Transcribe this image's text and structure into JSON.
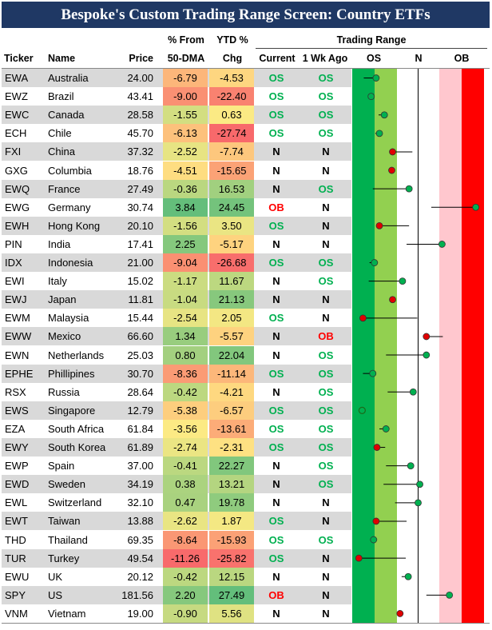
{
  "title": "Bespoke's Custom Trading Range Screen: Country ETFs",
  "headers": {
    "ticker": "Ticker",
    "name": "Name",
    "price": "Price",
    "pct_from_line1": "% From",
    "pct_from_line2": "50-DMA",
    "ytd_line1": "YTD %",
    "ytd_line2": "Chg",
    "trading_range": "Trading Range",
    "current": "Current",
    "wk_ago": "1 Wk Ago",
    "os": "OS",
    "n": "N",
    "ob": "OB"
  },
  "colors": {
    "title_bg": "#1f3864",
    "os_green": "#00b050",
    "ob_red": "#ff0000",
    "dark_green_zone": "#00b050",
    "light_green_zone": "#92d050",
    "light_red_zone": "#ffc7ce",
    "red_zone": "#ff0000",
    "dot_green": "#00b050",
    "dot_red": "#e00000"
  },
  "chart_data": {
    "type": "table",
    "range_scale": "OS to OB",
    "rows": [
      {
        "ticker": "EWA",
        "name": "Australia",
        "price": "24.00",
        "dma": "-6.79",
        "ytd": "-4.53",
        "current": "OS",
        "wk_ago": "OS",
        "pos": -2.55,
        "prev": -3.3,
        "dot": "green"
      },
      {
        "ticker": "EWZ",
        "name": "Brazil",
        "price": "43.41",
        "dma": "-9.00",
        "ytd": "-22.40",
        "current": "OS",
        "wk_ago": "OS",
        "pos": -2.85,
        "prev": -2.85,
        "dot": "green"
      },
      {
        "ticker": "EWC",
        "name": "Canada",
        "price": "28.58",
        "dma": "-1.55",
        "ytd": "0.63",
        "current": "OS",
        "wk_ago": "OS",
        "pos": -2.05,
        "prev": -2.4,
        "dot": "green"
      },
      {
        "ticker": "ECH",
        "name": "Chile",
        "price": "45.70",
        "dma": "-6.13",
        "ytd": "-27.74",
        "current": "OS",
        "wk_ago": "OS",
        "pos": -2.35,
        "prev": -2.6,
        "dot": "green"
      },
      {
        "ticker": "FXI",
        "name": "China",
        "price": "37.32",
        "dma": "-2.52",
        "ytd": "-7.74",
        "current": "N",
        "wk_ago": "N",
        "pos": -1.55,
        "prev": -0.35,
        "dot": "red"
      },
      {
        "ticker": "GXG",
        "name": "Columbia",
        "price": "18.76",
        "dma": "-4.51",
        "ytd": "-15.65",
        "current": "N",
        "wk_ago": "N",
        "pos": -1.6,
        "prev": -1.6,
        "dot": "red"
      },
      {
        "ticker": "EWQ",
        "name": "France",
        "price": "27.49",
        "dma": "-0.36",
        "ytd": "16.53",
        "current": "N",
        "wk_ago": "OS",
        "pos": -0.55,
        "prev": -2.75,
        "dot": "green"
      },
      {
        "ticker": "EWG",
        "name": "Germany",
        "price": "30.74",
        "dma": "3.84",
        "ytd": "24.45",
        "current": "OB",
        "wk_ago": "N",
        "pos": 3.5,
        "prev": 0.8,
        "dot": "green"
      },
      {
        "ticker": "EWH",
        "name": "Hong Kong",
        "price": "20.10",
        "dma": "-1.56",
        "ytd": "3.50",
        "current": "OS",
        "wk_ago": "N",
        "pos": -2.35,
        "prev": -0.55,
        "dot": "red"
      },
      {
        "ticker": "PIN",
        "name": "India",
        "price": "17.41",
        "dma": "2.25",
        "ytd": "-5.17",
        "current": "N",
        "wk_ago": "N",
        "pos": 1.45,
        "prev": -0.7,
        "dot": "green"
      },
      {
        "ticker": "IDX",
        "name": "Indonesia",
        "price": "21.00",
        "dma": "-9.04",
        "ytd": "-26.68",
        "current": "OS",
        "wk_ago": "OS",
        "pos": -2.65,
        "prev": -2.95,
        "dot": "green"
      },
      {
        "ticker": "EWI",
        "name": "Italy",
        "price": "15.02",
        "dma": "-1.17",
        "ytd": "11.67",
        "current": "N",
        "wk_ago": "OS",
        "pos": -0.95,
        "prev": -3.0,
        "dot": "green"
      },
      {
        "ticker": "EWJ",
        "name": "Japan",
        "price": "11.81",
        "dma": "-1.04",
        "ytd": "21.13",
        "current": "N",
        "wk_ago": "N",
        "pos": -1.55,
        "prev": -1.55,
        "dot": "red"
      },
      {
        "ticker": "EWM",
        "name": "Malaysia",
        "price": "15.44",
        "dma": "-2.54",
        "ytd": "2.05",
        "current": "OS",
        "wk_ago": "N",
        "pos": -3.35,
        "prev": -0.05,
        "dot": "red"
      },
      {
        "ticker": "EWW",
        "name": "Mexico",
        "price": "66.60",
        "dma": "1.34",
        "ytd": "-5.57",
        "current": "N",
        "wk_ago": "OB",
        "pos": 0.5,
        "prev": 1.5,
        "dot": "red"
      },
      {
        "ticker": "EWN",
        "name": "Netherlands",
        "price": "25.03",
        "dma": "0.80",
        "ytd": "22.04",
        "current": "N",
        "wk_ago": "OS",
        "pos": 0.5,
        "prev": -1.95,
        "dot": "green"
      },
      {
        "ticker": "EPHE",
        "name": "Phillipines",
        "price": "30.70",
        "dma": "-8.36",
        "ytd": "-11.14",
        "current": "OS",
        "wk_ago": "OS",
        "pos": -2.75,
        "prev": -3.35,
        "dot": "green"
      },
      {
        "ticker": "RSX",
        "name": "Russia",
        "price": "28.64",
        "dma": "-0.42",
        "ytd": "-4.21",
        "current": "N",
        "wk_ago": "OS",
        "pos": -0.3,
        "prev": -1.85,
        "dot": "green"
      },
      {
        "ticker": "EWS",
        "name": "Singapore",
        "price": "12.79",
        "dma": "-5.38",
        "ytd": "-6.57",
        "current": "OS",
        "wk_ago": "OS",
        "pos": -3.4,
        "prev": -3.4,
        "dot": "hollow"
      },
      {
        "ticker": "EZA",
        "name": "South Africa",
        "price": "61.84",
        "dma": "-3.56",
        "ytd": "-13.61",
        "current": "OS",
        "wk_ago": "OS",
        "pos": -1.95,
        "prev": -2.35,
        "dot": "green"
      },
      {
        "ticker": "EWY",
        "name": "South Korea",
        "price": "61.89",
        "dma": "-2.74",
        "ytd": "-2.31",
        "current": "OS",
        "wk_ago": "OS",
        "pos": -2.5,
        "prev": -2.0,
        "dot": "red"
      },
      {
        "ticker": "EWP",
        "name": "Spain",
        "price": "37.00",
        "dma": "-0.41",
        "ytd": "22.27",
        "current": "N",
        "wk_ago": "OS",
        "pos": -0.45,
        "prev": -1.95,
        "dot": "green"
      },
      {
        "ticker": "EWD",
        "name": "Sweden",
        "price": "34.19",
        "dma": "0.38",
        "ytd": "13.21",
        "current": "N",
        "wk_ago": "OS",
        "pos": 0.1,
        "prev": -2.1,
        "dot": "green"
      },
      {
        "ticker": "EWL",
        "name": "Switzerland",
        "price": "32.10",
        "dma": "0.47",
        "ytd": "19.78",
        "current": "N",
        "wk_ago": "N",
        "pos": 0.0,
        "prev": -1.4,
        "dot": "green"
      },
      {
        "ticker": "EWT",
        "name": "Taiwan",
        "price": "13.88",
        "dma": "-2.62",
        "ytd": "1.87",
        "current": "OS",
        "wk_ago": "N",
        "pos": -2.55,
        "prev": -0.7,
        "dot": "red"
      },
      {
        "ticker": "THD",
        "name": "Thailand",
        "price": "69.35",
        "dma": "-8.64",
        "ytd": "-15.93",
        "current": "OS",
        "wk_ago": "OS",
        "pos": -2.7,
        "prev": -2.7,
        "dot": "green"
      },
      {
        "ticker": "TUR",
        "name": "Turkey",
        "price": "49.54",
        "dma": "-11.26",
        "ytd": "-25.82",
        "current": "OS",
        "wk_ago": "N",
        "pos": -3.6,
        "prev": -0.75,
        "dot": "red"
      },
      {
        "ticker": "EWU",
        "name": "UK",
        "price": "20.12",
        "dma": "-0.42",
        "ytd": "12.15",
        "current": "N",
        "wk_ago": "N",
        "pos": -0.6,
        "prev": -1.0,
        "dot": "green"
      },
      {
        "ticker": "SPY",
        "name": "US",
        "price": "181.56",
        "dma": "2.20",
        "ytd": "27.49",
        "current": "OB",
        "wk_ago": "N",
        "pos": 1.9,
        "prev": 0.5,
        "dot": "green"
      },
      {
        "ticker": "VNM",
        "name": "Vietnam",
        "price": "19.00",
        "dma": "-0.90",
        "ytd": "5.56",
        "current": "N",
        "wk_ago": "N",
        "pos": -1.1,
        "prev": -1.1,
        "dot": "red"
      }
    ]
  }
}
